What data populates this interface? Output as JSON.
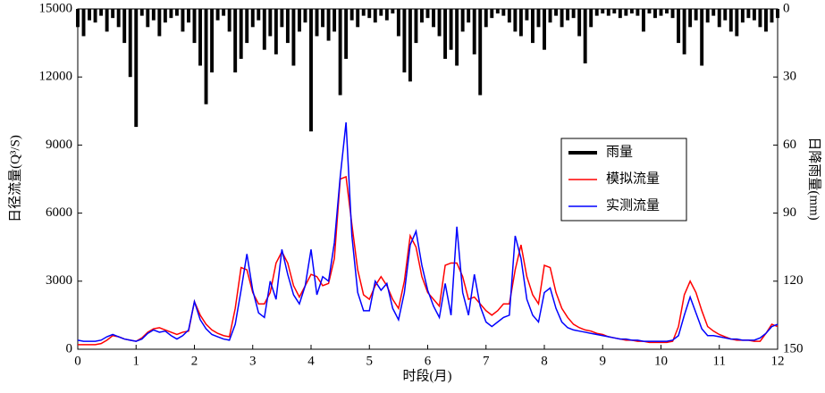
{
  "chart_data": {
    "type": "line",
    "xlabel": "时段(月)",
    "ylabel": "日径流量(Q³/S)",
    "y2label": "日降雨量(mm)",
    "xlim": [
      0,
      12
    ],
    "xticks": [
      0,
      1,
      2,
      3,
      4,
      5,
      6,
      7,
      8,
      9,
      10,
      11,
      12
    ],
    "ylim": [
      0,
      15000
    ],
    "yticks": [
      0,
      3000,
      6000,
      9000,
      12000,
      15000
    ],
    "y2lim": [
      0,
      150
    ],
    "y2ticks": [
      0,
      30,
      60,
      90,
      120,
      150
    ],
    "y2_reversed": true,
    "grid": false,
    "legend": "center-right",
    "x": [
      0,
      0.1,
      0.2,
      0.3,
      0.4,
      0.5,
      0.6,
      0.7,
      0.8,
      0.9,
      1,
      1.1,
      1.2,
      1.3,
      1.4,
      1.5,
      1.6,
      1.7,
      1.8,
      1.9,
      2,
      2.1,
      2.2,
      2.3,
      2.4,
      2.5,
      2.6,
      2.7,
      2.8,
      2.9,
      3,
      3.1,
      3.2,
      3.3,
      3.4,
      3.5,
      3.6,
      3.7,
      3.8,
      3.9,
      4,
      4.1,
      4.2,
      4.3,
      4.4,
      4.5,
      4.6,
      4.7,
      4.8,
      4.9,
      5,
      5.1,
      5.2,
      5.3,
      5.4,
      5.5,
      5.6,
      5.7,
      5.8,
      5.9,
      6,
      6.1,
      6.2,
      6.3,
      6.4,
      6.5,
      6.6,
      6.7,
      6.8,
      6.9,
      7,
      7.1,
      7.2,
      7.3,
      7.4,
      7.5,
      7.6,
      7.7,
      7.8,
      7.9,
      8,
      8.1,
      8.2,
      8.3,
      8.4,
      8.5,
      8.6,
      8.7,
      8.8,
      8.9,
      9,
      9.1,
      9.2,
      9.3,
      9.4,
      9.5,
      9.6,
      9.7,
      9.8,
      9.9,
      10,
      10.1,
      10.2,
      10.3,
      10.4,
      10.5,
      10.6,
      10.7,
      10.8,
      10.9,
      11,
      11.1,
      11.2,
      11.3,
      11.4,
      11.5,
      11.6,
      11.7,
      11.8,
      11.9,
      12
    ],
    "series": [
      {
        "name": "雨量",
        "color": "#000000",
        "axis": "y2",
        "kind": "bar",
        "values": [
          8,
          12,
          5,
          6,
          3,
          10,
          4,
          8,
          15,
          30,
          52,
          3,
          8,
          5,
          12,
          6,
          4,
          3,
          10,
          6,
          15,
          25,
          42,
          28,
          5,
          3,
          10,
          28,
          22,
          15,
          8,
          5,
          18,
          12,
          20,
          8,
          15,
          25,
          10,
          6,
          54,
          12,
          8,
          14,
          10,
          38,
          22,
          5,
          8,
          3,
          4,
          6,
          3,
          5,
          2,
          12,
          28,
          32,
          15,
          6,
          4,
          8,
          12,
          22,
          18,
          25,
          10,
          6,
          20,
          38,
          8,
          4,
          2,
          3,
          6,
          10,
          12,
          5,
          15,
          8,
          18,
          6,
          3,
          8,
          5,
          4,
          12,
          24,
          8,
          3,
          2,
          3,
          2,
          4,
          3,
          2,
          3,
          10,
          2,
          4,
          3,
          2,
          4,
          15,
          20,
          8,
          5,
          25,
          6,
          3,
          8,
          5,
          10,
          12,
          6,
          4,
          5,
          8,
          10,
          6,
          4
        ]
      },
      {
        "name": "模拟流量",
        "color": "#ff0000",
        "values": [
          200,
          200,
          200,
          200,
          250,
          400,
          600,
          550,
          450,
          400,
          350,
          500,
          750,
          900,
          950,
          850,
          750,
          650,
          750,
          800,
          2100,
          1500,
          1100,
          850,
          700,
          600,
          550,
          1800,
          3600,
          3500,
          2500,
          2000,
          2000,
          2500,
          3800,
          4300,
          3800,
          2800,
          2300,
          2800,
          3300,
          3200,
          2800,
          2900,
          4000,
          7500,
          7600,
          5500,
          3500,
          2400,
          2200,
          2800,
          3200,
          2800,
          2200,
          1800,
          3000,
          5000,
          4500,
          3200,
          2500,
          2200,
          1900,
          3700,
          3800,
          3800,
          3200,
          2200,
          2300,
          2000,
          1700,
          1500,
          1700,
          2000,
          2000,
          3500,
          4600,
          3200,
          2400,
          2000,
          3700,
          3600,
          2500,
          1800,
          1400,
          1100,
          950,
          850,
          800,
          700,
          650,
          550,
          500,
          450,
          400,
          400,
          350,
          350,
          300,
          300,
          300,
          300,
          350,
          1000,
          2400,
          3000,
          2500,
          1700,
          1000,
          800,
          650,
          550,
          450,
          400,
          400,
          400,
          350,
          350,
          700,
          1100,
          1000
        ]
      },
      {
        "name": "实测流量",
        "color": "#0000ff",
        "values": [
          400,
          350,
          350,
          350,
          400,
          550,
          650,
          550,
          450,
          400,
          350,
          450,
          700,
          850,
          750,
          800,
          600,
          450,
          600,
          850,
          2100,
          1300,
          900,
          650,
          550,
          450,
          400,
          1100,
          2600,
          4200,
          2600,
          1600,
          1400,
          3000,
          2200,
          4400,
          3300,
          2400,
          2000,
          2800,
          4400,
          2400,
          3200,
          3000,
          4700,
          7600,
          10000,
          5000,
          2500,
          1700,
          1700,
          3000,
          2600,
          2900,
          1800,
          1300,
          2500,
          4600,
          5200,
          3700,
          2600,
          1900,
          1400,
          2900,
          1500,
          5400,
          2500,
          1500,
          3300,
          1900,
          1200,
          1000,
          1200,
          1400,
          1500,
          5000,
          4000,
          2200,
          1500,
          1200,
          2500,
          2700,
          1800,
          1200,
          950,
          850,
          800,
          750,
          700,
          650,
          600,
          550,
          500,
          450,
          450,
          400,
          400,
          350,
          350,
          350,
          350,
          350,
          400,
          600,
          1500,
          2300,
          1600,
          900,
          600,
          600,
          550,
          500,
          450,
          450,
          400,
          400,
          400,
          500,
          700,
          1000,
          1100
        ]
      }
    ]
  }
}
